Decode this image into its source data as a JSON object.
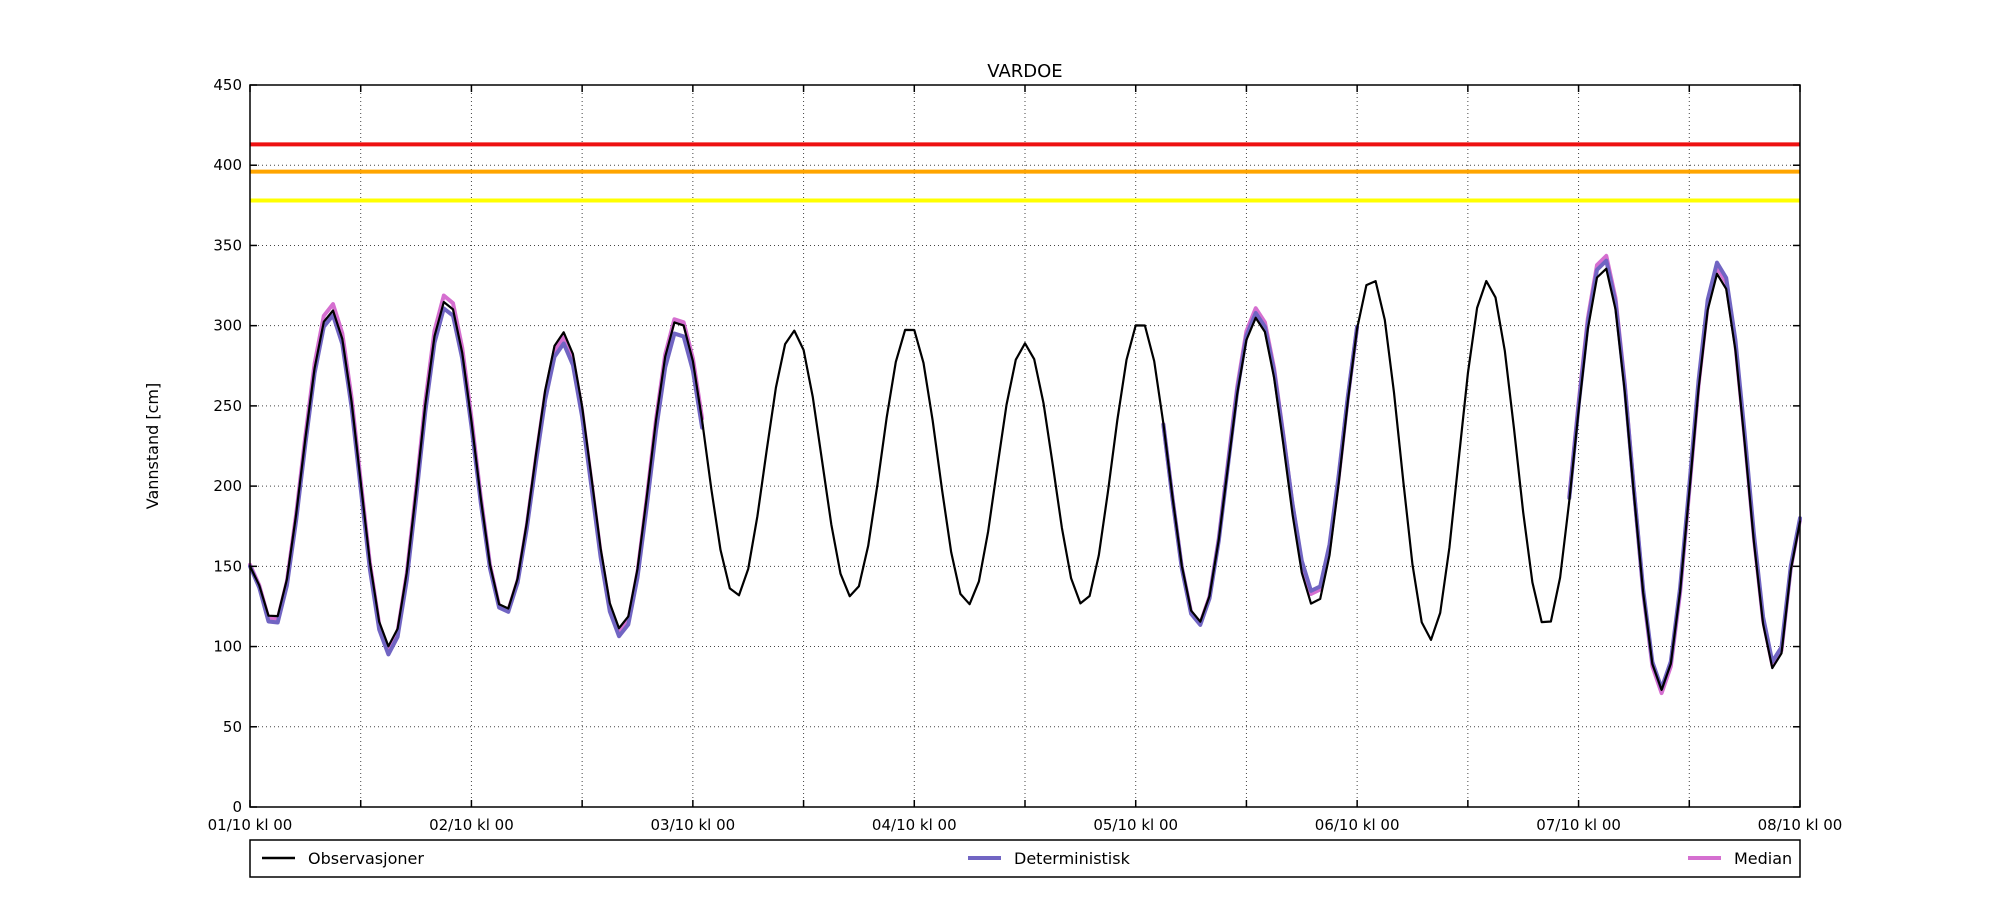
{
  "title": "VARDOE",
  "y_axis": {
    "label": "Vannstand [cm]",
    "min": 0,
    "max": 450,
    "tick_step": 50,
    "ticks": [
      "0",
      "50",
      "100",
      "150",
      "200",
      "250",
      "300",
      "350",
      "400",
      "450"
    ]
  },
  "x_axis": {
    "labels": [
      "01/10 kl 00",
      "02/10 kl 00",
      "03/10 kl 00",
      "04/10 kl 00",
      "05/10 kl 00",
      "06/10 kl 00",
      "07/10 kl 00",
      "08/10 kl 00"
    ],
    "hours_between_labels": 24,
    "grid_interval_hours": 12,
    "total_hours": 168
  },
  "legend": {
    "items": [
      {
        "label": "Observasjoner",
        "color": "#000000",
        "line_width": 2.5
      },
      {
        "label": "Deterministisk",
        "color": "#7165c3",
        "line_width": 4
      },
      {
        "label": "Median",
        "color": "#d56fd0",
        "line_width": 4
      }
    ]
  },
  "chart_data": {
    "type": "line",
    "title": "VARDOE",
    "xlabel": "",
    "ylabel": "Vannstand [cm]",
    "ylim": [
      0,
      450
    ],
    "x_unit": "hours since 01/10 kl 00",
    "xlim": [
      0,
      168
    ],
    "grid": "dotted, every 12 h vertical, every 50 cm horizontal",
    "legend_position": "bottom, expanded, 3 columns",
    "reference_lines": [
      {
        "name": "red-threshold",
        "value": 413,
        "color": "#ee1111"
      },
      {
        "name": "orange-threshold",
        "value": 396,
        "color": "#ffa500"
      },
      {
        "name": "yellow-threshold",
        "value": 378,
        "color": "#ffff00"
      }
    ],
    "interpolation": "half-cosine between listed extrema, sampled hourly",
    "series": [
      {
        "name": "Observasjoner",
        "color": "#000000",
        "width": 2.2,
        "keypoints": [
          [
            0,
            150
          ],
          [
            2.5,
            116
          ],
          [
            8.8,
            310
          ],
          [
            15.1,
            100
          ],
          [
            21.3,
            316
          ],
          [
            27.6,
            122
          ],
          [
            33.9,
            296
          ],
          [
            40.2,
            111
          ],
          [
            46.4,
            304
          ],
          [
            52.7,
            131
          ],
          [
            58.9,
            297
          ],
          [
            65.2,
            131
          ],
          [
            71.5,
            300
          ],
          [
            77.8,
            126
          ],
          [
            84,
            289
          ],
          [
            90.3,
            126
          ],
          [
            96.5,
            303
          ],
          [
            102.8,
            115
          ],
          [
            109.1,
            305
          ],
          [
            115.4,
            125
          ],
          [
            121.6,
            330
          ],
          [
            127.9,
            104
          ],
          [
            134.1,
            328
          ],
          [
            140.5,
            112
          ],
          [
            146.7,
            337
          ],
          [
            153,
            73
          ],
          [
            159.2,
            333
          ],
          [
            165.4,
            84
          ],
          [
            168,
            178
          ]
        ]
      },
      {
        "name": "Deterministisk",
        "color": "#7165c3",
        "width": 4,
        "segments": [
          [
            0,
            49
          ],
          [
            99,
            120
          ],
          [
            143,
            168
          ]
        ],
        "keypoints": [
          [
            0,
            150
          ],
          [
            2.5,
            112
          ],
          [
            8.8,
            307
          ],
          [
            15.1,
            95
          ],
          [
            21.3,
            312
          ],
          [
            27.6,
            120
          ],
          [
            33.9,
            289
          ],
          [
            40.2,
            106
          ],
          [
            46.4,
            297
          ],
          [
            52.7,
            131
          ],
          [
            58.9,
            297
          ],
          [
            65.2,
            131
          ],
          [
            71.5,
            300
          ],
          [
            77.8,
            126
          ],
          [
            84,
            289
          ],
          [
            90.3,
            126
          ],
          [
            96.5,
            303
          ],
          [
            102.8,
            113
          ],
          [
            109.1,
            308
          ],
          [
            115.4,
            133
          ],
          [
            121.6,
            330
          ],
          [
            127.9,
            104
          ],
          [
            134.1,
            328
          ],
          [
            140.5,
            112
          ],
          [
            146.7,
            342
          ],
          [
            153,
            74
          ],
          [
            159.2,
            340
          ],
          [
            165.4,
            88
          ],
          [
            168,
            180
          ]
        ]
      },
      {
        "name": "Median",
        "color": "#d56fd0",
        "width": 4,
        "segments": [
          [
            0,
            49
          ],
          [
            99,
            120
          ],
          [
            143,
            168
          ]
        ],
        "keypoints": [
          [
            0,
            151
          ],
          [
            2.5,
            114
          ],
          [
            8.8,
            314
          ],
          [
            15.1,
            98
          ],
          [
            21.3,
            320
          ],
          [
            27.6,
            121
          ],
          [
            33.9,
            293
          ],
          [
            40.2,
            108
          ],
          [
            46.4,
            306
          ],
          [
            52.7,
            131
          ],
          [
            58.9,
            297
          ],
          [
            65.2,
            131
          ],
          [
            71.5,
            300
          ],
          [
            77.8,
            126
          ],
          [
            84,
            289
          ],
          [
            90.3,
            126
          ],
          [
            96.5,
            303
          ],
          [
            102.8,
            114
          ],
          [
            109.1,
            311
          ],
          [
            115.4,
            131
          ],
          [
            121.6,
            330
          ],
          [
            127.9,
            104
          ],
          [
            134.1,
            328
          ],
          [
            140.5,
            112
          ],
          [
            146.7,
            345
          ],
          [
            153,
            71
          ],
          [
            159.2,
            337
          ],
          [
            165.4,
            86
          ],
          [
            168,
            179
          ]
        ]
      }
    ]
  }
}
